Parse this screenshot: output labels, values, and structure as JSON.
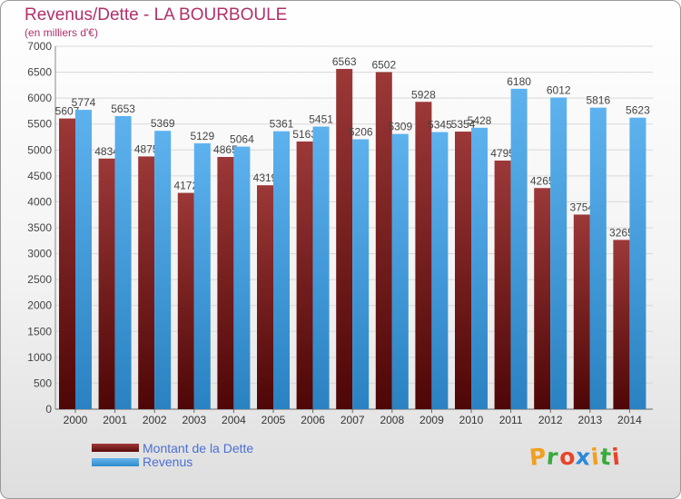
{
  "chart_data": {
    "type": "bar",
    "title": "Revenus/Dette - LA BOURBOULE",
    "subtitle": "(en milliers d'€)",
    "categories": [
      "2000",
      "2001",
      "2002",
      "2003",
      "2004",
      "2005",
      "2006",
      "2007",
      "2008",
      "2009",
      "2010",
      "2011",
      "2012",
      "2013",
      "2014"
    ],
    "series": [
      {
        "name": "Montant de la Dette",
        "color": "#7a1f1f",
        "values": [
          5607,
          4834,
          4875,
          4172,
          4865,
          4319,
          5163,
          6563,
          6502,
          5928,
          5354,
          4795,
          4265,
          3754,
          3265
        ],
        "labels": [
          "5607",
          "4834",
          "4875",
          "4172",
          "4865",
          "4319",
          "5163",
          "6563",
          "6502",
          "5928",
          "5354",
          "4795",
          "4265",
          "3754",
          "3265"
        ]
      },
      {
        "name": "Revenus",
        "color": "#4aa3e2",
        "values": [
          5774,
          5653,
          5369,
          5129,
          5064,
          5361,
          5451,
          5206,
          5309,
          5345,
          5428,
          6180,
          6012,
          5816,
          5623
        ],
        "labels": [
          "5774",
          "5653",
          "5369",
          "5129",
          "5064",
          "5361",
          "5451",
          "5206",
          "5309",
          "5345",
          "5428",
          "6180",
          "6012",
          "5816",
          "5623"
        ]
      }
    ],
    "ylim": [
      0,
      7000
    ],
    "yticks": [
      0,
      500,
      1000,
      1500,
      2000,
      2500,
      3000,
      3500,
      4000,
      4500,
      5000,
      5500,
      6000,
      6500,
      7000
    ],
    "grid": true,
    "legend_placement": "bottom-left"
  },
  "logo": {
    "text": "Proxiti",
    "letters": [
      "P",
      "r",
      "o",
      "x",
      "i",
      "t",
      "i"
    ],
    "colors": [
      "#f0a020",
      "#3aaa3a",
      "#e8442a",
      "#2a8ad8",
      "#f0a020",
      "#3aaa3a",
      "#e8442a"
    ]
  }
}
